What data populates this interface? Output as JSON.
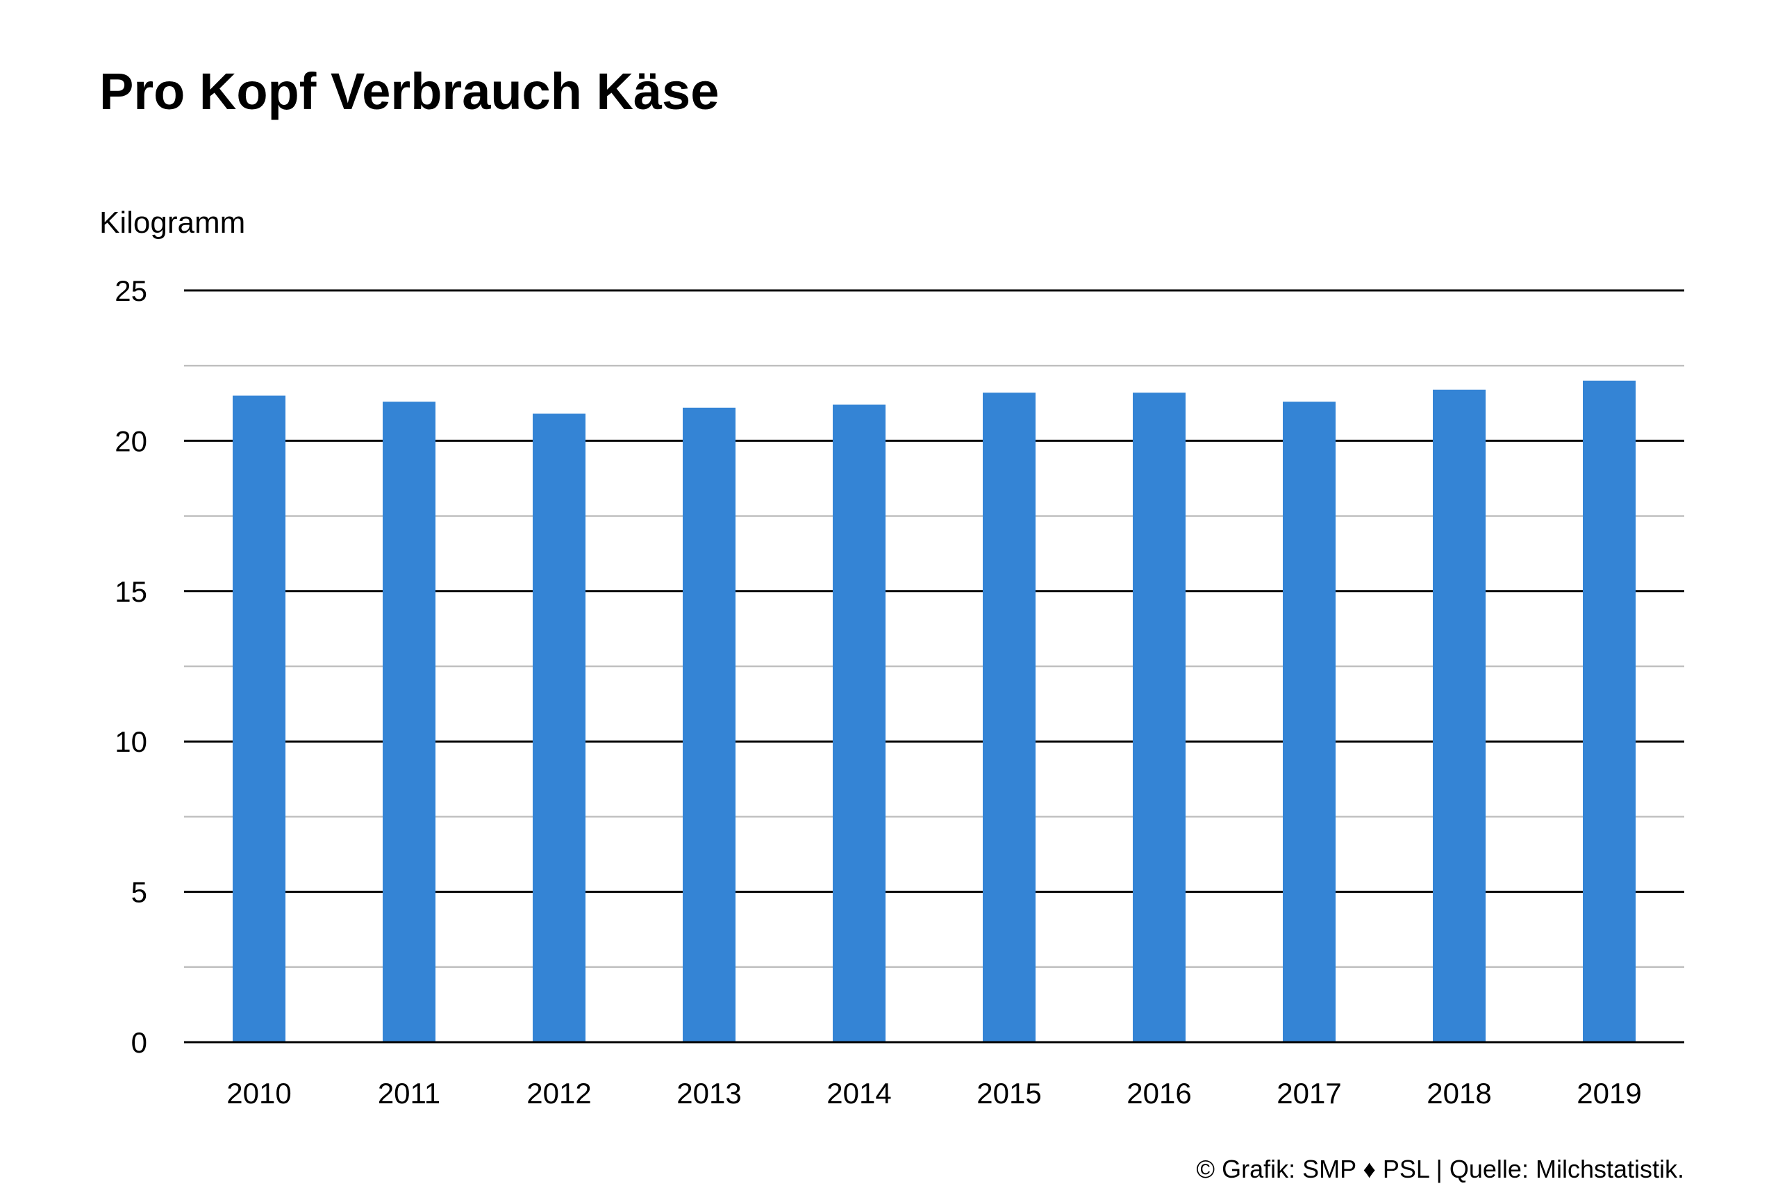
{
  "colors": {
    "bar": "#3484d5",
    "major_grid": "#000000",
    "minor_grid": "#c0c0c0",
    "background": "#ffffff",
    "text": "#000000"
  },
  "chart_data": {
    "type": "bar",
    "title": "Pro Kopf Verbrauch Käse",
    "ylabel": "Kilogramm",
    "xlabel": "",
    "categories": [
      "2010",
      "2011",
      "2012",
      "2013",
      "2014",
      "2015",
      "2016",
      "2017",
      "2018",
      "2019"
    ],
    "values": [
      21.5,
      21.3,
      20.9,
      21.1,
      21.2,
      21.6,
      21.6,
      21.3,
      21.7,
      22.0
    ],
    "ylim": [
      0,
      25
    ],
    "yticks": [
      "0",
      "5",
      "10",
      "15",
      "20",
      "25"
    ],
    "grid": true,
    "minor_grid_step": 2.5,
    "legend": false,
    "credit": "© Grafik: SMP ♦ PSL | Quelle: Milchstatistik."
  }
}
